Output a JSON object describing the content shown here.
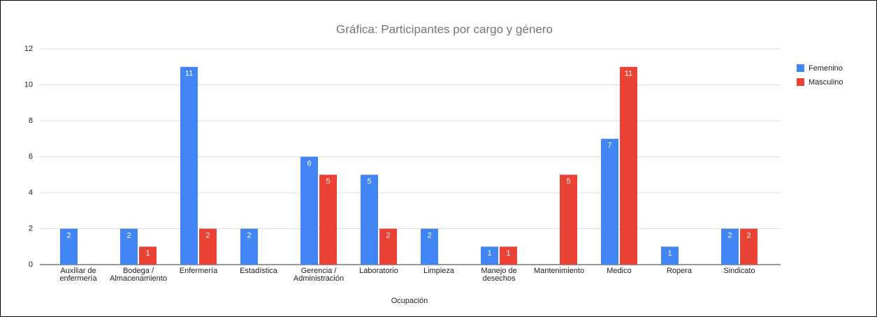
{
  "chart_data": {
    "type": "bar",
    "title": "Gráfica: Participantes por cargo y género",
    "x_label": "Ocupación",
    "categories": [
      "Auxiliar de enfermería",
      "Bodega / Almacenamiento",
      "Enfermería",
      "Estadística",
      "Gerencia / Administración",
      "Laboratorio",
      "Limpieza",
      "Manejo de desechos",
      "Mantenimiento",
      "Medico",
      "Ropera",
      "Sindicato"
    ],
    "series": [
      {
        "name": "Femenino",
        "color": "#4285f4",
        "values": [
          2,
          2,
          11,
          2,
          6,
          5,
          2,
          1,
          null,
          7,
          1,
          2
        ]
      },
      {
        "name": "Masculino",
        "color": "#ea4335",
        "values": [
          null,
          1,
          2,
          null,
          5,
          2,
          null,
          1,
          5,
          11,
          null,
          2
        ]
      }
    ],
    "ylim": [
      0,
      12
    ],
    "yticks": [
      0,
      2,
      4,
      6,
      8,
      10,
      12
    ],
    "grid": true,
    "legend": "right"
  }
}
